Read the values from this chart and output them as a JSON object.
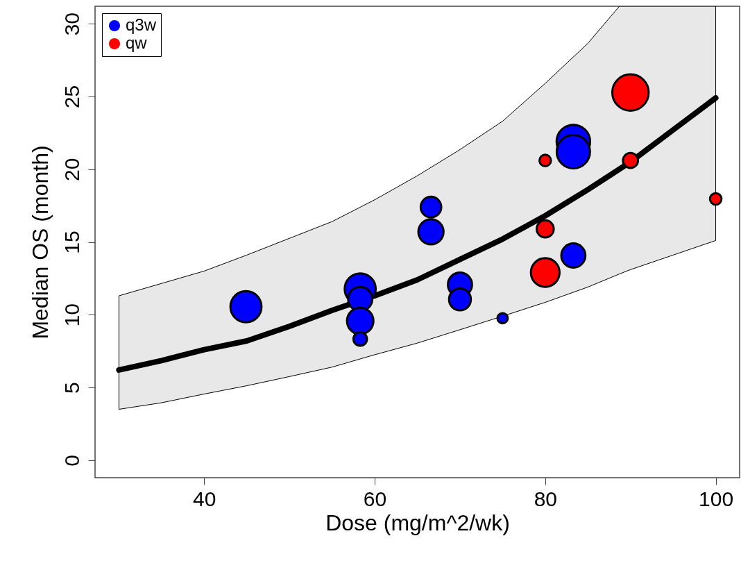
{
  "chart_data": {
    "type": "bubble",
    "xlabel": "Dose (mg/m^2/wk)",
    "ylabel": "Median OS (month)",
    "xlim": [
      27.2,
      102.8
    ],
    "ylim": [
      -1.2,
      31.2
    ],
    "xticks": [
      40,
      60,
      80,
      100
    ],
    "yticks": [
      0,
      5,
      10,
      15,
      20,
      25,
      30
    ],
    "legend": "top left",
    "series": [
      {
        "type": "line",
        "color": "#000000",
        "x": [
          30,
          35,
          40,
          45,
          50,
          55,
          60,
          65,
          70,
          75,
          80,
          85,
          88.7,
          90,
          95,
          100
        ],
        "values": [
          6.2,
          6.85,
          7.6,
          8.2,
          9.2,
          10.3,
          11.3,
          12.4,
          13.8,
          15.2,
          16.8,
          18.6,
          20.0,
          20.5,
          22.7,
          24.9
        ],
        "lower": [
          3.5,
          3.95,
          4.55,
          5.12,
          5.75,
          6.4,
          7.25,
          8.05,
          8.97,
          9.9,
          10.85,
          11.9,
          12.8,
          13.1,
          14.1,
          15.1
        ],
        "upper": [
          11.3,
          12.15,
          13.0,
          14.1,
          15.25,
          16.4,
          17.9,
          19.55,
          21.35,
          23.3,
          25.9,
          28.65,
          31.2,
          31.2,
          31.2,
          31.2
        ]
      },
      {
        "name": "q3w",
        "color": "#0000ff",
        "x": [
          44.9,
          58.3,
          58.3,
          58.3,
          58.3,
          66.6,
          66.6,
          70,
          70,
          75,
          83.3,
          83.3,
          83.3
        ],
        "values": [
          10.55,
          11.77,
          11.08,
          9.57,
          8.33,
          17.4,
          15.7,
          12.07,
          11.05,
          9.76,
          21.9,
          21.2,
          14.07
        ],
        "sizes": [
          0.73,
          0.73,
          0.44,
          0.53,
          0.14,
          0.32,
          0.48,
          0.44,
          0.36,
          0.08,
          0.85,
          0.84,
          0.44
        ]
      },
      {
        "name": "qw",
        "color": "#ff0000",
        "x": [
          90,
          80,
          90,
          100,
          80,
          80
        ],
        "values": [
          25.27,
          20.6,
          20.6,
          17.96,
          15.9,
          12.9
        ],
        "sizes": [
          1,
          0.1,
          0.17,
          0.1,
          0.22,
          0.62
        ]
      }
    ]
  }
}
